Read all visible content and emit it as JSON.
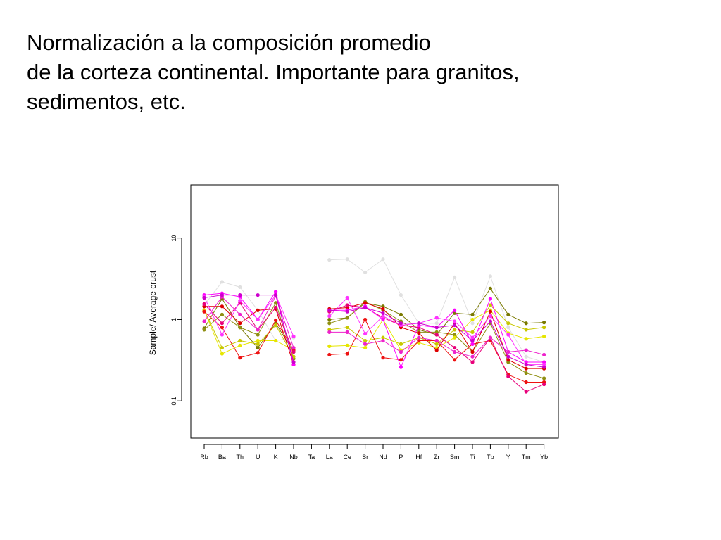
{
  "slide": {
    "title_lines": [
      "Normalización a la composición promedio",
      "de la corteza continental.  Importante para granitos,",
      "sedimentos, etc."
    ]
  },
  "chart_data": {
    "type": "line",
    "title": "",
    "xlabel": "",
    "ylabel": "Sample/ Average crust",
    "yscale": "log",
    "ylim": [
      0.035,
      45
    ],
    "yticks": [
      {
        "value": 0.1,
        "label": "0.1"
      },
      {
        "value": 1,
        "label": "1"
      },
      {
        "value": 10,
        "label": "10"
      }
    ],
    "grid": false,
    "categories": [
      "Rb",
      "Ba",
      "Th",
      "U",
      "K",
      "Nb",
      "Ta",
      "La",
      "Ce",
      "Sr",
      "Nd",
      "P",
      "Hf",
      "Zr",
      "Sm",
      "Ti",
      "Tb",
      "Y",
      "Tm",
      "Yb"
    ],
    "series": [
      {
        "color": "#e0e0e0",
        "values": [
          1.5,
          2.9,
          2.5,
          1.3,
          0.55,
          0.6,
          null,
          5.4,
          5.5,
          3.8,
          5.5,
          2.0,
          0.9,
          0.9,
          3.3,
          0.9,
          3.4,
          0.8,
          0.35,
          0.3
        ]
      },
      {
        "color": "#7a7a00",
        "values": [
          0.78,
          1.8,
          0.8,
          0.45,
          0.9,
          0.4,
          null,
          1.0,
          1.05,
          1.6,
          1.45,
          1.15,
          0.75,
          0.65,
          1.2,
          1.15,
          2.4,
          1.15,
          0.9,
          0.92
        ]
      },
      {
        "color": "#8f8f12",
        "values": [
          0.75,
          1.15,
          0.8,
          0.65,
          1.6,
          0.33,
          null,
          0.9,
          1.05,
          1.65,
          1.3,
          0.95,
          0.7,
          0.7,
          0.65,
          0.4,
          0.9,
          0.3,
          0.22,
          0.19
        ]
      },
      {
        "color": "#c8c800",
        "values": [
          1.3,
          0.45,
          0.55,
          0.5,
          0.85,
          0.35,
          null,
          0.75,
          0.8,
          0.55,
          0.6,
          0.5,
          0.6,
          0.5,
          0.75,
          0.7,
          1.5,
          0.9,
          0.75,
          0.8
        ]
      },
      {
        "color": "#e6e600",
        "values": [
          1.3,
          0.38,
          0.48,
          0.55,
          0.55,
          0.42,
          null,
          0.47,
          0.48,
          0.45,
          1.0,
          0.42,
          0.52,
          0.45,
          0.6,
          1.0,
          1.3,
          0.68,
          0.58,
          0.62
        ]
      },
      {
        "color": "#dd0000",
        "values": [
          1.45,
          1.45,
          0.9,
          1.3,
          1.35,
          0.28,
          null,
          1.35,
          1.4,
          1.6,
          1.35,
          0.8,
          0.68,
          0.42,
          0.9,
          0.4,
          1.25,
          0.32,
          0.25,
          0.25
        ]
      },
      {
        "color": "#ee1111",
        "values": [
          1.25,
          0.8,
          0.34,
          0.39,
          0.98,
          0.42,
          null,
          0.37,
          0.38,
          1.0,
          0.34,
          0.32,
          0.55,
          0.55,
          0.32,
          0.5,
          0.55,
          0.21,
          0.17,
          0.17
        ]
      },
      {
        "color": "#e8007a",
        "values": [
          1.55,
          0.9,
          1.6,
          0.75,
          1.4,
          0.4,
          null,
          1.25,
          1.5,
          1.4,
          1.05,
          0.85,
          0.8,
          0.65,
          0.45,
          0.3,
          0.6,
          0.2,
          0.13,
          0.16
        ]
      },
      {
        "color": "#ff00ff",
        "values": [
          2.0,
          2.1,
          1.9,
          1.0,
          2.2,
          0.28,
          null,
          1.3,
          1.3,
          1.45,
          1.0,
          0.26,
          0.85,
          0.8,
          1.3,
          0.5,
          1.8,
          0.4,
          0.3,
          0.3
        ]
      },
      {
        "color": "#ee22cc",
        "values": [
          0.95,
          1.9,
          1.15,
          0.75,
          1.95,
          0.45,
          null,
          0.7,
          0.7,
          0.5,
          0.55,
          0.4,
          0.6,
          0.55,
          0.4,
          0.35,
          0.6,
          0.4,
          0.42,
          0.37
        ]
      },
      {
        "color": "#ff33ff",
        "values": [
          1.9,
          0.65,
          1.7,
          1.0,
          2.0,
          0.62,
          null,
          1.1,
          1.85,
          0.67,
          1.1,
          0.85,
          0.9,
          1.05,
          0.95,
          0.6,
          1.1,
          0.65,
          0.28,
          0.28
        ]
      },
      {
        "color": "#cc00cc",
        "values": [
          1.85,
          2.0,
          2.0,
          2.0,
          2.0,
          0.3,
          null,
          1.3,
          1.25,
          1.4,
          1.2,
          0.9,
          0.9,
          0.8,
          0.85,
          0.55,
          0.95,
          0.35,
          0.28,
          0.26
        ]
      }
    ]
  }
}
